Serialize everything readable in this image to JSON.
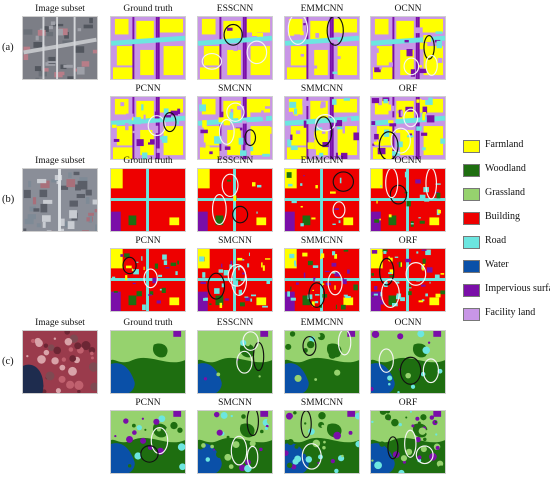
{
  "panels": [
    {
      "id": "(a)",
      "subset_label": "Image subset",
      "row1": [
        "Ground truth",
        "ESSCNN",
        "EMMCNN",
        "OCNN"
      ],
      "row2": [
        "PCNN",
        "SMCNN",
        "SMMCNN",
        "ORF"
      ]
    },
    {
      "id": "(b)",
      "subset_label": "Image subset",
      "row1": [
        "Ground truth",
        "ESSCNN",
        "EMMCNN",
        "OCNN"
      ],
      "row2": [
        "PCNN",
        "SMCNN",
        "SMMCNN",
        "ORF"
      ]
    },
    {
      "id": "(c)",
      "subset_label": "Image subset",
      "row1": [
        "Ground truth",
        "ESSCNN",
        "EMMCNN",
        "OCNN"
      ],
      "row2": [
        "PCNN",
        "SMCNN",
        "SMMCNN",
        "ORF"
      ]
    }
  ],
  "legend": [
    {
      "label": "Farmland",
      "color": "#ffff00"
    },
    {
      "label": "Woodland",
      "color": "#1e6e10"
    },
    {
      "label": "Grassland",
      "color": "#96d26e"
    },
    {
      "label": "Building",
      "color": "#ee0000"
    },
    {
      "label": "Road",
      "color": "#6ce6e0"
    },
    {
      "label": "Water",
      "color": "#0a50a8"
    },
    {
      "label": "Impervious surface",
      "color": "#7a0ea8"
    },
    {
      "label": "Facility land",
      "color": "#c896e6"
    }
  ]
}
